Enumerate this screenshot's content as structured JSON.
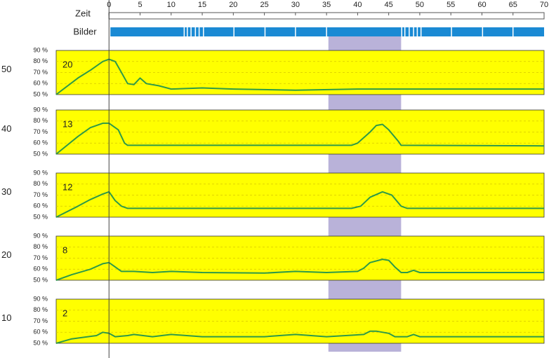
{
  "chart_data": {
    "type": "line",
    "time_label": "Zeit",
    "images_label": "Bilder",
    "xlim": [
      -8.5,
      70
    ],
    "xticks": [
      0,
      5,
      10,
      15,
      20,
      25,
      30,
      35,
      40,
      45,
      50,
      55,
      60,
      65,
      70
    ],
    "ylim": [
      50,
      90
    ],
    "yticks": [
      {
        "value": 50,
        "label": "50 %"
      },
      {
        "value": 60,
        "label": "60 %"
      },
      {
        "value": 70,
        "label": "70 %"
      },
      {
        "value": 80,
        "label": "80 %"
      },
      {
        "value": 90,
        "label": "90 %"
      }
    ],
    "grid": true,
    "highlight": [
      35.3,
      47
    ],
    "image_times": [
      12.1,
      12.6,
      13.2,
      13.9,
      14.5,
      15.2,
      20.1,
      25.1,
      30.0,
      35.0,
      47.1,
      47.6,
      48.3,
      49.0,
      49.6,
      50.2,
      55.1,
      60.1,
      65.0
    ],
    "panel_color": "#ffff00",
    "line_color": "#2e9a48",
    "image_color": "#1a8ad4",
    "highlight_color": "#b9b2d9",
    "panels": [
      {
        "name": "50",
        "annotation": "20",
        "x": [
          -8.5,
          -5,
          -3,
          -1,
          0,
          1,
          2,
          3,
          4,
          5,
          6,
          8,
          10,
          15,
          20,
          30,
          40,
          50,
          70
        ],
        "values": [
          50,
          65,
          72,
          80,
          82,
          80,
          70,
          60,
          59,
          65,
          60,
          58,
          55,
          56,
          55,
          54,
          55,
          55,
          55
        ]
      },
      {
        "name": "40",
        "annotation": "13",
        "x": [
          -8.5,
          -5,
          -3,
          -1,
          0,
          1.5,
          2.5,
          3,
          39,
          40,
          42,
          43,
          44,
          45,
          46.5,
          47,
          70
        ],
        "values": [
          50,
          66,
          74,
          78,
          78,
          72,
          60,
          58,
          58,
          60,
          70,
          76,
          77,
          72,
          62,
          58,
          57.5
        ]
      },
      {
        "name": "30",
        "annotation": "12",
        "x": [
          -8.5,
          -5,
          -3,
          -1,
          0,
          1,
          2,
          3,
          39,
          40.5,
          42,
          44,
          45.5,
          47,
          48,
          70
        ],
        "values": [
          50,
          60,
          66,
          71,
          73,
          65,
          60,
          58,
          58,
          60,
          68,
          73,
          70,
          60,
          58,
          58
        ]
      },
      {
        "name": "20",
        "annotation": "8",
        "x": [
          -8.5,
          -6,
          -3,
          -1,
          0,
          1,
          2,
          4,
          7,
          10,
          15,
          25,
          30,
          35,
          40,
          41,
          42,
          44,
          45,
          46,
          47,
          48,
          49,
          50,
          70
        ],
        "values": [
          50,
          55,
          60,
          65,
          66,
          62,
          58,
          58,
          57,
          58,
          57,
          56.5,
          58,
          57,
          58,
          61,
          66,
          69,
          68,
          62,
          57,
          57,
          59,
          57,
          57
        ]
      },
      {
        "name": "10",
        "annotation": "2",
        "x": [
          -8.5,
          -6,
          -2,
          -1,
          0,
          1,
          3,
          4,
          7,
          10,
          15,
          25,
          30,
          35,
          41,
          42,
          43,
          45,
          46,
          48,
          49,
          50,
          70
        ],
        "values": [
          50,
          54,
          57,
          60,
          59,
          56,
          57,
          58,
          56,
          58,
          56,
          56,
          58,
          56,
          58,
          61,
          61,
          59,
          56,
          56,
          58,
          56,
          56
        ]
      }
    ]
  }
}
